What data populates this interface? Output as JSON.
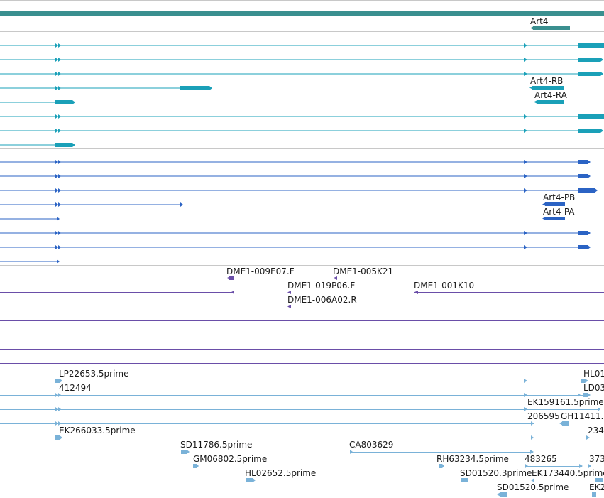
{
  "colors": {
    "gene": "#3a8f8f",
    "transcript_cyan": "#1aa0b8",
    "transcript_blue": "#2b63c4",
    "probe": "#6a4ea8",
    "est": "#7ab2d8",
    "separator": "#c8c8c8"
  },
  "gene_track": {
    "label": "Art4"
  },
  "cyan_transcripts": {
    "labels": [
      "Art4-RB",
      "Art4-RA"
    ]
  },
  "blue_transcripts": {
    "labels": [
      "Art4-PB",
      "Art4-PA"
    ]
  },
  "probe_track": {
    "labels": [
      "DME1-009E07.F",
      "DME1-005K21",
      "DME1-019P06.F",
      "DME1-001K10",
      "DME1-006A02.R"
    ]
  },
  "est_track": {
    "labels": [
      "LP22653.5prime",
      "HL01",
      "412494",
      "LD03",
      "EK159161.5prime",
      "206595",
      "GH11411.",
      "EK266033.5prime",
      "234",
      "SD11786.5prime",
      "CA803629",
      "GM06802.5prime",
      "RH63234.5prime",
      "483265",
      "373",
      "HL02652.5prime",
      "SD01520.3prime",
      "EK173440.5prime",
      "SD01520.5prime",
      "EK2"
    ]
  }
}
